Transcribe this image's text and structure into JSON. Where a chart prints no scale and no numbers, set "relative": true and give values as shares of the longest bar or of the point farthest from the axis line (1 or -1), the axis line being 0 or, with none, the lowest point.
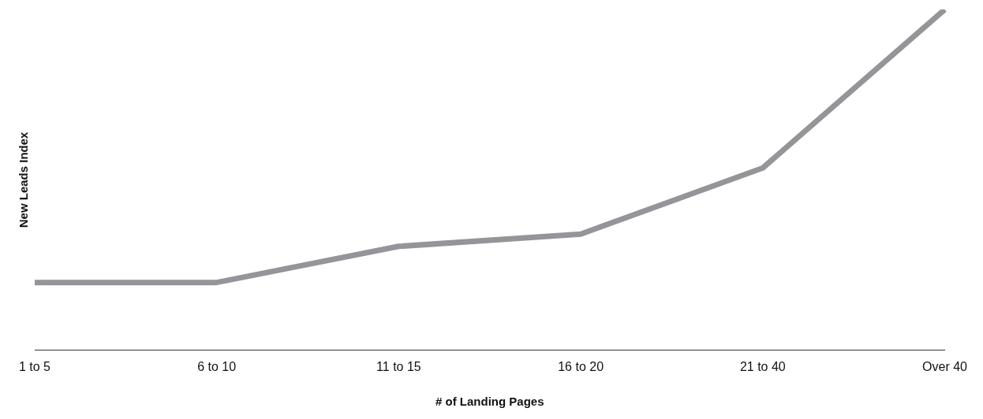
{
  "chart_data": {
    "type": "line",
    "xlabel": "# of Landing Pages",
    "ylabel": "New Leads Index",
    "categories": [
      "1 to 5",
      "6 to 10",
      "11 to 15",
      "16 to 20",
      "21 to 40",
      "Over 40"
    ],
    "relative": true,
    "series": [
      {
        "color": "#939598",
        "values": [
          0.199,
          0.199,
          0.305,
          0.341,
          0.535,
          1
        ]
      }
    ],
    "grid": false,
    "legend": false,
    "marker": "none",
    "line_style": "solid"
  }
}
